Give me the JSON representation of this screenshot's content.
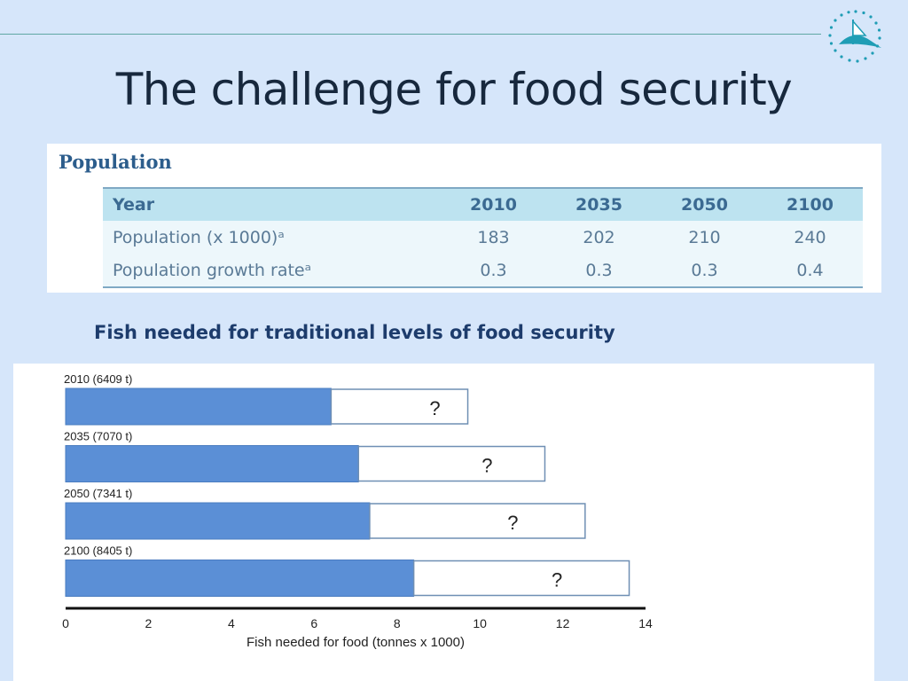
{
  "slide": {
    "title": "The challenge for food security"
  },
  "population_table": {
    "heading": "Population",
    "columns": [
      "Year",
      "2010",
      "2035",
      "2050",
      "2100"
    ],
    "rows": [
      [
        "Population (x 1000)ᵃ",
        "183",
        "202",
        "210",
        "240"
      ],
      [
        "Population growth rateᵃ",
        "0.3",
        "0.3",
        "0.3",
        "0.4"
      ]
    ]
  },
  "fish_section": {
    "heading": "Fish needed for traditional levels of food security"
  },
  "colors": {
    "background": "#d6e6fa",
    "bar_fill": "#5b8fd6",
    "title": "#17283d",
    "table_header": "#bde3f0"
  },
  "chart_data": {
    "type": "bar",
    "orientation": "horizontal",
    "categories": [
      "2010 (6409 t)",
      "2035 (7070 t)",
      "2050 (7341 t)",
      "2100 (8405 t)"
    ],
    "series": [
      {
        "values": [
          6.409,
          7.07,
          7.341,
          8.405
        ]
      },
      {
        "values": [
          3.3,
          4.5,
          5.2,
          5.2
        ],
        "labels": [
          "?",
          "?",
          "?",
          "?"
        ]
      }
    ],
    "xlabel": "Fish needed for food  (tonnes x 1000)",
    "xlim": [
      0,
      14
    ],
    "xticks": [
      "0",
      "2",
      "4",
      "6",
      "8",
      "10",
      "12",
      "14"
    ],
    "grid": false,
    "legend": "none"
  }
}
